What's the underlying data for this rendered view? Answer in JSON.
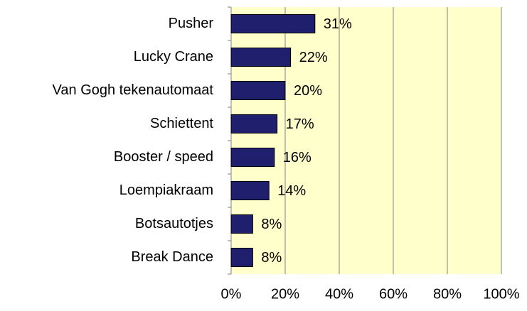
{
  "chart_data": {
    "type": "bar",
    "orientation": "horizontal",
    "categories": [
      "Pusher",
      "Lucky Crane",
      "Van Gogh tekenautomaat",
      "Schiettent",
      "Booster / speed",
      "Loempiakraam",
      "Botsautotjes",
      "Break Dance"
    ],
    "values": [
      31,
      22,
      20,
      17,
      16,
      14,
      8,
      8
    ],
    "value_labels": [
      "31%",
      "22%",
      "20%",
      "17%",
      "16%",
      "14%",
      "8%",
      "8%"
    ],
    "color": "#1f1f6e",
    "xlim": [
      0,
      100
    ],
    "xticks": [
      {
        "value": 0,
        "label": "0%"
      },
      {
        "value": 20,
        "label": "20%"
      },
      {
        "value": 40,
        "label": "40%"
      },
      {
        "value": 60,
        "label": "60%"
      },
      {
        "value": 80,
        "label": "80%"
      },
      {
        "value": 100,
        "label": "100%"
      }
    ],
    "grid": true
  }
}
